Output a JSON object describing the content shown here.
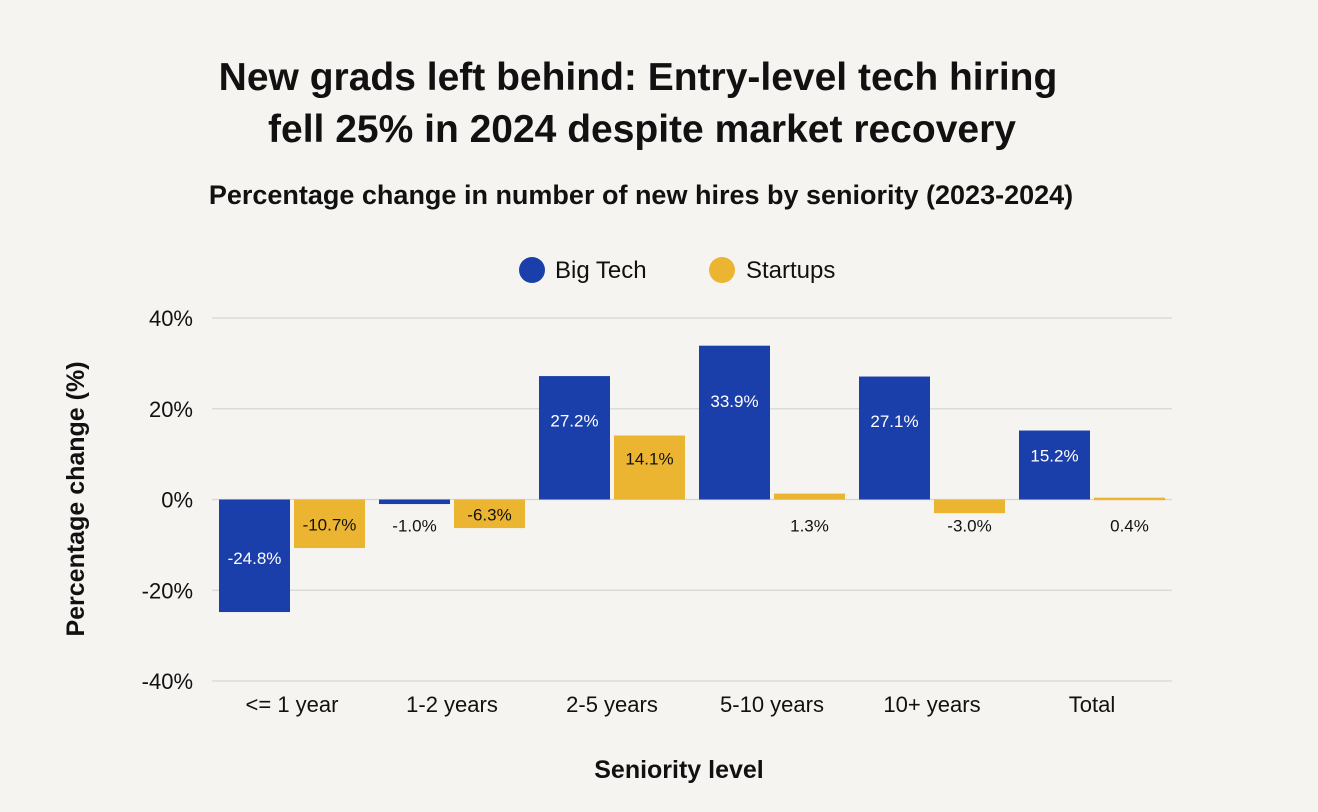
{
  "chart_data": {
    "type": "bar",
    "title_lines": [
      "New grads left behind: Entry-level tech hiring",
      "fell 25% in 2024 despite market recovery"
    ],
    "subtitle": "Percentage change in number of new hires by seniority (2023-2024)",
    "xlabel": "Seniority level",
    "ylabel": "Percentage change (%)",
    "ylim": [
      -40,
      40
    ],
    "yticks": [
      {
        "value": 40,
        "label": "40%"
      },
      {
        "value": 20,
        "label": "20%"
      },
      {
        "value": 0,
        "label": "0%"
      },
      {
        "value": -20,
        "label": "-20%"
      },
      {
        "value": -40,
        "label": "-40%"
      }
    ],
    "grid": true,
    "legend_position": "top-center",
    "categories": [
      "<= 1 year",
      "1-2 years",
      "2-5 years",
      "5-10 years",
      "10+ years",
      "Total"
    ],
    "series": [
      {
        "name": "Big Tech",
        "color": "#1b3faa",
        "values": [
          -24.8,
          -1.0,
          27.2,
          33.9,
          27.1,
          15.2
        ],
        "labels": [
          "-24.8%",
          "-1.0%",
          "27.2%",
          "33.9%",
          "27.1%",
          "15.2%"
        ]
      },
      {
        "name": "Startups",
        "color": "#ebb532",
        "values": [
          -10.7,
          -6.3,
          14.1,
          1.3,
          -3.0,
          0.4
        ],
        "labels": [
          "-10.7%",
          "-6.3%",
          "14.1%",
          "1.3%",
          "-3.0%",
          "0.4%"
        ]
      }
    ]
  }
}
